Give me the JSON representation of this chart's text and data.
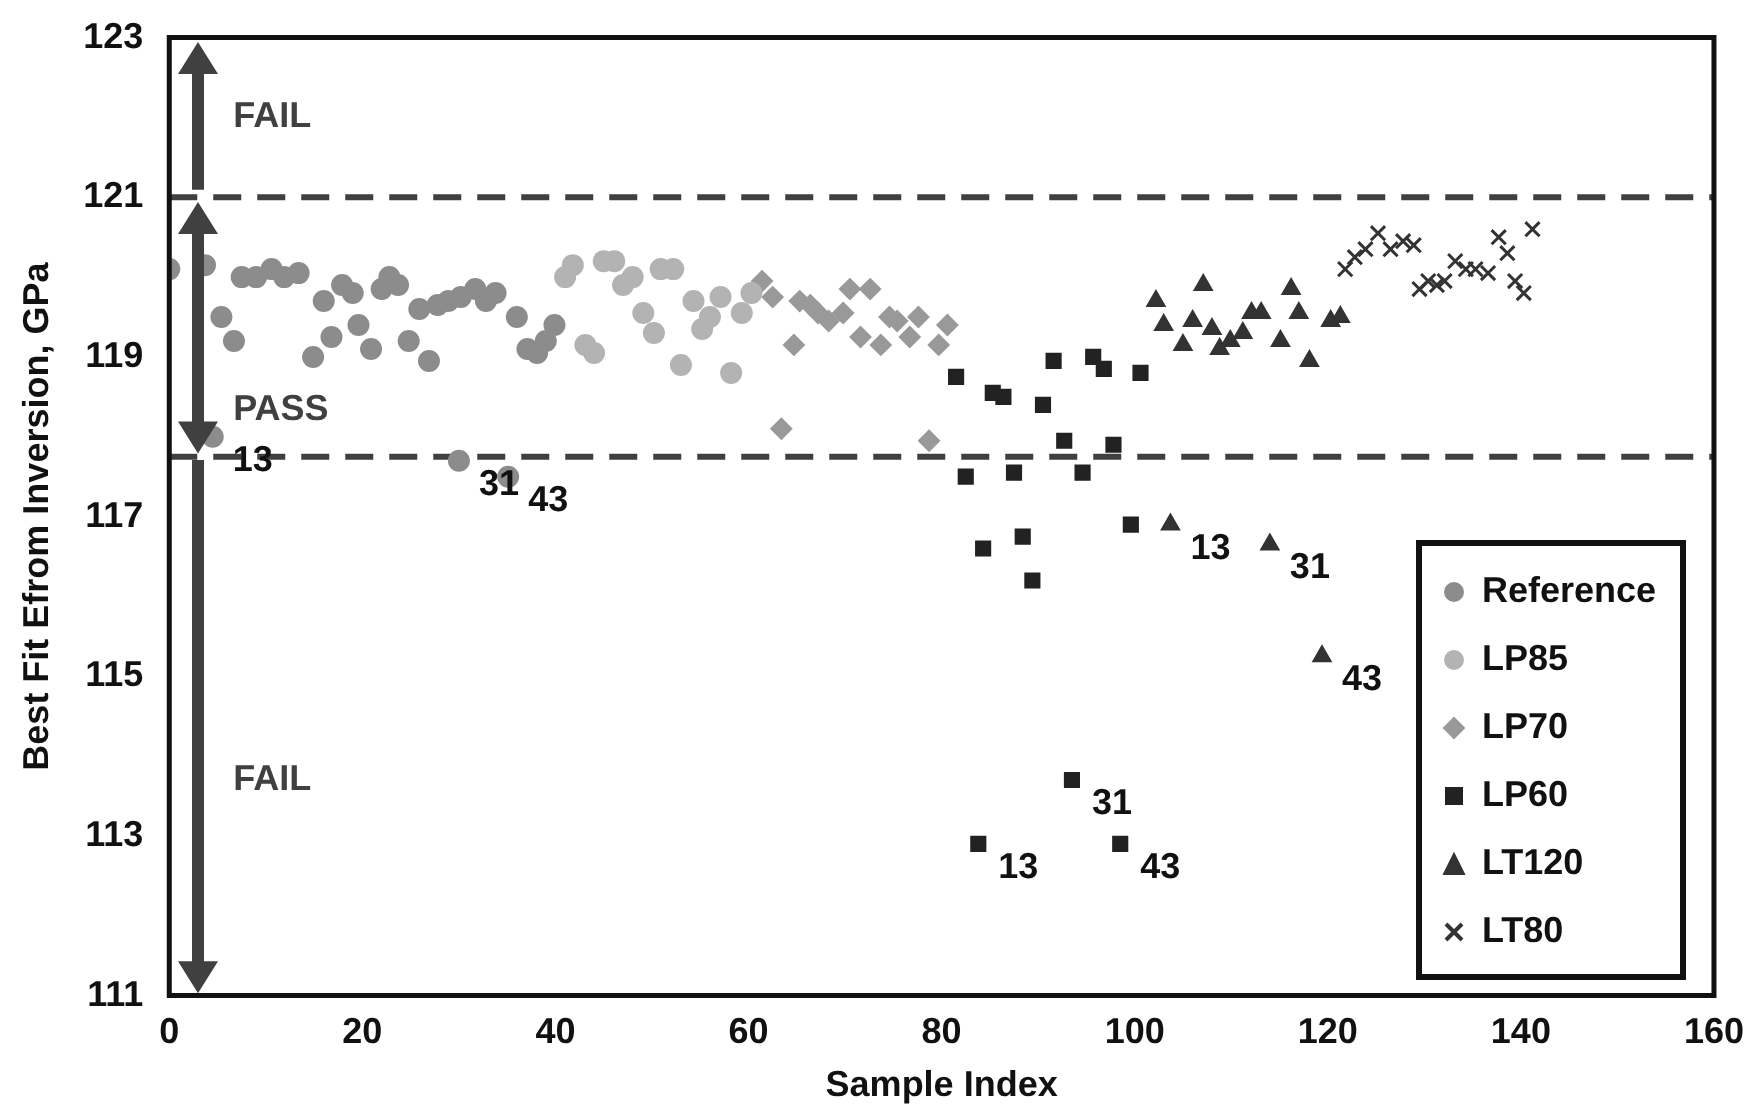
{
  "chart_data": {
    "type": "scatter",
    "xlabel": "Sample Index",
    "ylabel": "Best Fit Efrom Inversion, GPa",
    "xlim": [
      0,
      160
    ],
    "xticks": [
      0,
      20,
      40,
      60,
      80,
      100,
      120,
      140,
      160
    ],
    "ylim": [
      111,
      123
    ],
    "yticks": [
      111,
      113,
      115,
      117,
      119,
      121,
      123
    ],
    "grid": false,
    "legend": "bottom right",
    "series": [
      {
        "name": "Reference",
        "color": "#8c8c8c",
        "marker": "circle",
        "x": [
          0,
          3.7,
          4.5,
          5.4,
          6.7,
          7.5,
          9,
          10.6,
          11.9,
          13.4,
          14.9,
          16,
          16.8,
          17.9,
          19,
          19.6,
          20.9,
          22,
          22.8,
          23.7,
          24.8,
          25.9,
          26.9,
          27.8,
          28.9,
          30,
          30.2,
          31.7,
          32.8,
          33.8,
          35.1,
          36,
          37.1,
          38.1,
          39,
          39.9
        ],
        "values": [
          120.1,
          120.15,
          118.0,
          119.5,
          119.2,
          120.0,
          120.0,
          120.1,
          120.0,
          120.05,
          119.0,
          119.7,
          119.25,
          119.9,
          119.8,
          119.4,
          119.1,
          119.85,
          120.0,
          119.9,
          119.2,
          119.6,
          118.95,
          119.65,
          119.7,
          117.7,
          119.75,
          119.85,
          119.7,
          119.8,
          117.5,
          119.5,
          119.1,
          119.05,
          119.2,
          119.4
        ]
      },
      {
        "name": "LP85",
        "color": "#b3b3b3",
        "marker": "circle",
        "x": [
          41,
          41.8,
          43.1,
          44,
          45,
          46.1,
          47,
          48,
          49.1,
          50.2,
          50.9,
          52.2,
          53,
          54.3,
          55.2,
          56,
          57.1,
          58.2,
          59.3,
          60.3
        ],
        "values": [
          120.0,
          120.15,
          119.15,
          119.05,
          120.2,
          120.2,
          119.9,
          120.0,
          119.55,
          119.3,
          120.1,
          120.1,
          118.9,
          119.7,
          119.35,
          119.5,
          119.75,
          118.8,
          119.55,
          119.8
        ]
      },
      {
        "name": "LP70",
        "color": "#999999",
        "marker": "diamond",
        "x": [
          61.4,
          62.5,
          63.4,
          64.7,
          65.3,
          66.4,
          67.2,
          68.3,
          69.8,
          70.5,
          71.6,
          72.6,
          73.7,
          74.6,
          75.4,
          76.7,
          77.6,
          78.7,
          79.7,
          80.6
        ],
        "values": [
          119.95,
          119.75,
          118.1,
          119.15,
          119.7,
          119.65,
          119.55,
          119.45,
          119.55,
          119.85,
          119.25,
          119.85,
          119.15,
          119.5,
          119.45,
          119.25,
          119.5,
          117.95,
          119.15,
          119.4
        ]
      },
      {
        "name": "LP60",
        "color": "#222222",
        "marker": "square",
        "x": [
          81.5,
          82.5,
          83.8,
          84.3,
          85.3,
          86.4,
          87.5,
          88.4,
          89.4,
          90.5,
          91.6,
          92.7,
          93.5,
          94.6,
          95.7,
          96.8,
          97.8,
          98.5,
          99.6,
          100.6
        ],
        "values": [
          118.75,
          117.5,
          112.9,
          116.6,
          118.55,
          118.5,
          117.55,
          116.75,
          116.2,
          118.4,
          118.95,
          117.95,
          113.7,
          117.55,
          119.0,
          118.85,
          117.9,
          112.9,
          116.9,
          118.8
        ]
      },
      {
        "name": "LT120",
        "color": "#333333",
        "marker": "triangle",
        "x": [
          102.2,
          103,
          103.7,
          105,
          106,
          107.1,
          108,
          108.8,
          109.9,
          111.2,
          112.1,
          113.1,
          114,
          115.1,
          116.2,
          117,
          118.1,
          119.4,
          120.3,
          121.3
        ],
        "values": [
          119.7,
          119.4,
          116.9,
          119.15,
          119.45,
          119.9,
          119.35,
          119.1,
          119.2,
          119.3,
          119.55,
          119.55,
          116.65,
          119.2,
          119.85,
          119.55,
          118.95,
          115.25,
          119.45,
          119.5
        ]
      },
      {
        "name": "LT80",
        "color": "#333333",
        "marker": "cross",
        "x": [
          121.8,
          122.8,
          123.9,
          125.2,
          126.5,
          127.8,
          128.9,
          129.5,
          130.4,
          131.3,
          132.1,
          133.2,
          134.3,
          135.3,
          136.6,
          137.7,
          138.6,
          139.4,
          140.3,
          141.2
        ],
        "values": [
          120.1,
          120.25,
          120.35,
          120.55,
          120.35,
          120.45,
          120.4,
          119.85,
          119.95,
          119.9,
          119.95,
          120.2,
          120.1,
          120.1,
          120.05,
          120.5,
          120.3,
          119.95,
          119.8,
          120.6
        ]
      }
    ],
    "ref_lines": [
      {
        "axis": "y",
        "value": 121,
        "color": "#404040",
        "line_style": "dashed"
      },
      {
        "axis": "y",
        "value": 117.75,
        "color": "#404040",
        "line_style": "dashed"
      }
    ],
    "annotations": [
      "FAIL",
      "PASS",
      "FAIL",
      {
        "text": "13",
        "x": 4.5,
        "y": 118.0
      },
      {
        "text": "31",
        "x": 30,
        "y": 117.7
      },
      {
        "text": "43",
        "x": 35.1,
        "y": 117.5
      },
      {
        "text": "13",
        "x": 83.8,
        "y": 112.9
      },
      {
        "text": "31",
        "x": 93.5,
        "y": 113.7
      },
      {
        "text": "43",
        "x": 98.5,
        "y": 112.9
      },
      {
        "text": "13",
        "x": 103.7,
        "y": 116.9
      },
      {
        "text": "31",
        "x": 114,
        "y": 116.65
      },
      {
        "text": "43",
        "x": 119.4,
        "y": 115.25
      }
    ]
  }
}
